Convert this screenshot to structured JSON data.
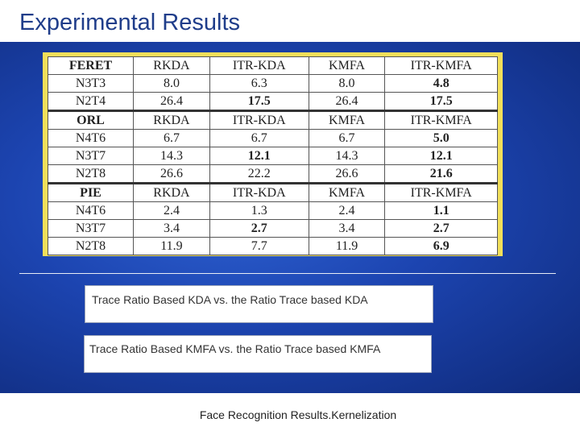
{
  "slide": {
    "title": "Experimental Results",
    "footer": "Face Recognition Results.Kernelization"
  },
  "table": {
    "sections": [
      {
        "header": [
          "FERET",
          "RKDA",
          "ITR-KDA",
          "KMFA",
          "ITR-KMFA"
        ],
        "rows": [
          [
            "N3T3",
            "8.0",
            "6.3",
            "8.0",
            "4.8"
          ],
          [
            "N2T4",
            "26.4",
            "17.5",
            "26.4",
            "17.5"
          ]
        ]
      },
      {
        "header": [
          "ORL",
          "RKDA",
          "ITR-KDA",
          "KMFA",
          "ITR-KMFA"
        ],
        "rows": [
          [
            "N4T6",
            "6.7",
            "6.7",
            "6.7",
            "5.0"
          ],
          [
            "N3T7",
            "14.3",
            "12.1",
            "14.3",
            "12.1"
          ],
          [
            "N2T8",
            "26.6",
            "22.2",
            "26.6",
            "21.6"
          ]
        ]
      },
      {
        "header": [
          "PIE",
          "RKDA",
          "ITR-KDA",
          "KMFA",
          "ITR-KMFA"
        ],
        "rows": [
          [
            "N4T6",
            "2.4",
            "1.3",
            "2.4",
            "1.1"
          ],
          [
            "N3T7",
            "3.4",
            "2.7",
            "3.4",
            "2.7"
          ],
          [
            "N2T8",
            "11.9",
            "7.7",
            "11.9",
            "6.9"
          ]
        ]
      }
    ]
  },
  "notes": {
    "kda_comparison": "Trace Ratio Based KDA vs. the Ratio Trace based KDA",
    "kmfa_comparison": "Trace Ratio Based KMFA vs. the Ratio Trace based KMFA"
  },
  "colors": {
    "title": "#1f3d8a",
    "panel": "#1c44b0",
    "table_frame": "#f1df5a"
  }
}
